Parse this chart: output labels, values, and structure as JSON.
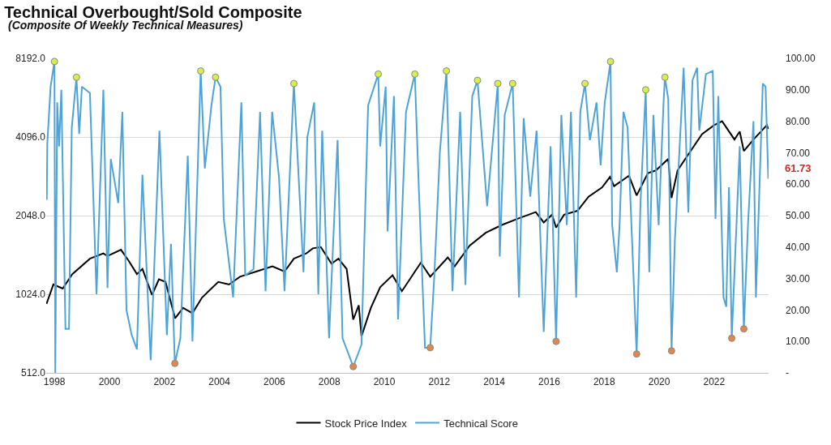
{
  "chart_data": {
    "type": "line",
    "title": "Technical Overbought/Sold Composite",
    "subtitle": "(Composite Of Weekly Technical Measures)",
    "xlim": [
      1997.7,
      2023.98
    ],
    "xticks": [
      1998,
      2000,
      2002,
      2004,
      2006,
      2008,
      2010,
      2012,
      2014,
      2016,
      2018,
      2020,
      2022
    ],
    "ylim": [
      512,
      8192
    ],
    "yticks": [
      {
        "value": 512,
        "label": "512.0"
      },
      {
        "value": 1024,
        "label": "1024.0"
      },
      {
        "value": 2048,
        "label": "2048.0"
      },
      {
        "value": 4096,
        "label": "4096.0"
      },
      {
        "value": 8192,
        "label": "8192.0"
      }
    ],
    "y2lim": [
      0,
      100
    ],
    "y2ticks": [
      {
        "value": 0,
        "label": "-"
      },
      {
        "value": 10,
        "label": "10.00"
      },
      {
        "value": 20,
        "label": "20.00"
      },
      {
        "value": 30,
        "label": "30.00"
      },
      {
        "value": 40,
        "label": "40.00"
      },
      {
        "value": 50,
        "label": "50.00"
      },
      {
        "value": 60,
        "label": "60.00"
      },
      {
        "value": 70,
        "label": "70.00"
      },
      {
        "value": 80,
        "label": "80.00"
      },
      {
        "value": 90,
        "label": "90.00"
      },
      {
        "value": 100,
        "label": "100.00"
      }
    ],
    "log": "y",
    "grid": "y",
    "legend": "bottom",
    "marker": "none",
    "line_style": "solid",
    "annotations": [
      "61.73"
    ],
    "series": [
      {
        "name": "Stock Price Index",
        "color": "#000000",
        "x": [
          1997.71,
          1997.96,
          1998.3,
          1998.65,
          1999.29,
          1999.78,
          1999.93,
          2000.42,
          2000.71,
          2001.0,
          2001.2,
          2001.55,
          2001.8,
          2002.04,
          2002.39,
          2002.68,
          2003.02,
          2003.37,
          2003.96,
          2004.35,
          2004.75,
          2005.34,
          2005.93,
          2006.37,
          2006.71,
          2007.16,
          2007.4,
          2007.69,
          2008.08,
          2008.33,
          2008.63,
          2008.87,
          2009.07,
          2009.17,
          2009.51,
          2009.85,
          2010.3,
          2010.64,
          2011.33,
          2011.67,
          2012.31,
          2012.56,
          2013.1,
          2013.69,
          2014.28,
          2014.87,
          2015.51,
          2015.8,
          2016.1,
          2016.25,
          2016.54,
          2017.03,
          2017.43,
          2017.92,
          2018.21,
          2018.36,
          2018.9,
          2019.18,
          2019.59,
          2019.88,
          2020.33,
          2020.45,
          2020.67,
          2021.11,
          2021.56,
          2022.0,
          2022.29,
          2022.74,
          2022.93,
          2023.08,
          2023.43,
          2023.92,
          2023.97
        ],
        "values": [
          940,
          1116,
          1077,
          1223,
          1401,
          1467,
          1433,
          1516,
          1370,
          1223,
          1280,
          1017,
          1168,
          1141,
          828,
          908,
          867,
          995,
          1141,
          1116,
          1195,
          1251,
          1310,
          1251,
          1401,
          1467,
          1535,
          1552,
          1340,
          1401,
          1280,
          819,
          929,
          707,
          908,
          1090,
          1210,
          1052,
          1353,
          1195,
          1417,
          1310,
          1571,
          1761,
          1886,
          1995,
          2113,
          1928,
          2064,
          1843,
          2064,
          2137,
          2420,
          2625,
          2880,
          2655,
          2913,
          2447,
          2980,
          3050,
          3377,
          2393,
          3050,
          3576,
          4199,
          4545,
          4706,
          4005,
          4297,
          3617,
          4005,
          4545,
          4395
        ]
      },
      {
        "name": "Technical Score",
        "color": "#4ea3d8",
        "axis": "y2",
        "x": [
          1997.72,
          1997.74,
          1997.86,
          1998.0,
          1998.03,
          1998.1,
          1998.17,
          1998.25,
          1998.4,
          1998.53,
          1998.63,
          1998.8,
          1998.9,
          1999.0,
          1999.29,
          1999.53,
          1999.78,
          1999.93,
          2000.05,
          2000.32,
          2000.47,
          2000.62,
          2000.81,
          2001.0,
          2001.2,
          2001.5,
          2001.82,
          2002.09,
          2002.24,
          2002.38,
          2002.58,
          2002.85,
          2003.02,
          2003.32,
          2003.47,
          2003.71,
          2003.86,
          2004.04,
          2004.16,
          2004.5,
          2004.8,
          2004.94,
          2005.24,
          2005.48,
          2005.68,
          2005.92,
          2006.17,
          2006.37,
          2006.71,
          2007.06,
          2007.2,
          2007.45,
          2007.6,
          2007.74,
          2007.99,
          2008.3,
          2008.48,
          2008.87,
          2009.17,
          2009.41,
          2009.78,
          2009.85,
          2010.05,
          2010.12,
          2010.35,
          2010.5,
          2010.79,
          2011.11,
          2011.25,
          2011.48,
          2011.67,
          2011.82,
          2012.02,
          2012.26,
          2012.48,
          2012.76,
          2012.95,
          2013.2,
          2013.39,
          2013.74,
          2014.13,
          2014.2,
          2014.38,
          2014.67,
          2014.9,
          2015.07,
          2015.31,
          2015.54,
          2015.8,
          2016.05,
          2016.25,
          2016.44,
          2016.64,
          2016.79,
          2016.98,
          2017.13,
          2017.3,
          2017.48,
          2017.72,
          2017.87,
          2018.02,
          2018.23,
          2018.29,
          2018.46,
          2018.56,
          2018.7,
          2018.85,
          2019.0,
          2019.18,
          2019.32,
          2019.51,
          2019.64,
          2019.79,
          2019.98,
          2020.16,
          2020.21,
          2020.33,
          2020.45,
          2020.57,
          2020.89,
          2021.06,
          2021.21,
          2021.38,
          2021.46,
          2021.7,
          2021.95,
          2022.05,
          2022.15,
          2022.34,
          2022.44,
          2022.54,
          2022.64,
          2022.74,
          2022.93,
          2023.08,
          2023.23,
          2023.43,
          2023.52,
          2023.77,
          2023.87,
          2023.97
        ],
        "values": [
          55,
          73,
          91,
          99,
          0,
          86,
          72,
          90,
          14,
          14,
          78,
          94,
          76,
          91,
          89,
          25,
          90,
          27,
          68,
          54,
          83,
          20,
          12,
          7.5,
          63,
          4,
          77,
          12,
          41,
          3,
          11,
          69,
          10,
          96,
          65,
          85,
          94,
          91,
          49,
          24,
          86,
          31,
          33,
          83,
          26,
          83,
          62,
          26,
          92,
          32,
          75,
          86,
          25,
          77,
          11,
          74,
          11,
          2,
          9,
          85,
          95,
          72,
          91,
          45,
          88,
          17,
          83,
          95,
          60,
          8,
          8,
          31,
          70,
          96,
          26,
          83,
          28,
          88,
          93,
          53,
          92,
          37,
          82,
          92,
          24,
          81,
          56,
          77,
          13,
          72,
          10,
          82,
          47,
          83,
          24,
          83,
          92,
          74,
          86,
          66,
          86,
          99,
          47,
          32,
          47,
          83,
          78,
          45,
          6,
          54,
          90,
          32,
          82,
          47,
          86,
          94,
          87,
          7,
          42,
          97,
          51,
          93,
          97,
          77,
          95,
          96,
          49,
          88,
          24,
          21,
          59,
          11,
          32,
          72,
          14,
          47,
          80,
          24,
          92,
          91,
          61.73
        ]
      },
      {
        "type": "scatter",
        "color": "#d6ef4f",
        "axis": "y2",
        "marker": "circle",
        "x": [
          1998.0,
          1998.8,
          2003.32,
          2003.86,
          2006.71,
          2009.78,
          2011.11,
          2012.26,
          2013.39,
          2014.13,
          2014.67,
          2017.3,
          2018.23,
          2019.51,
          2020.21
        ],
        "values": [
          99,
          94,
          96,
          94,
          92,
          95,
          95,
          96,
          93,
          92,
          92,
          92,
          99,
          90,
          94
        ]
      },
      {
        "type": "scatter",
        "color": "#e0874c",
        "axis": "y2",
        "marker": "circle",
        "x": [
          2002.38,
          2008.87,
          2011.67,
          2016.25,
          2019.18,
          2020.45,
          2022.64,
          2023.08
        ],
        "values": [
          3,
          2,
          8,
          10,
          6,
          7,
          11,
          14
        ]
      }
    ]
  }
}
